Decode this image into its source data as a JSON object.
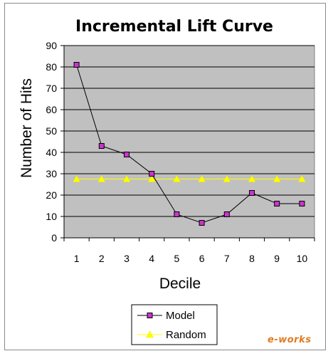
{
  "chart_data": {
    "type": "line",
    "title": "Incremental Lift Curve",
    "xlabel": "Decile",
    "ylabel": "Number of Hits",
    "x": [
      1,
      2,
      3,
      4,
      5,
      6,
      7,
      8,
      9,
      10
    ],
    "ylim": [
      0,
      90
    ],
    "yticks": [
      0,
      10,
      20,
      30,
      40,
      50,
      60,
      70,
      80,
      90
    ],
    "grid": true,
    "legend": "bottom-center",
    "plot_background": "#c0c0c0",
    "series": [
      {
        "name": "Model",
        "color": "#000000",
        "marker_color": "#cc33cc",
        "marker": "square",
        "values": [
          81,
          43,
          39,
          30,
          11,
          7,
          11,
          21,
          16,
          16
        ]
      },
      {
        "name": "Random",
        "color": "#ffff00",
        "marker_color": "#ffff00",
        "marker": "triangle",
        "values": [
          27.5,
          27.5,
          27.5,
          27.5,
          27.5,
          27.5,
          27.5,
          27.5,
          27.5,
          27.5
        ]
      }
    ]
  },
  "watermark": "e-works"
}
